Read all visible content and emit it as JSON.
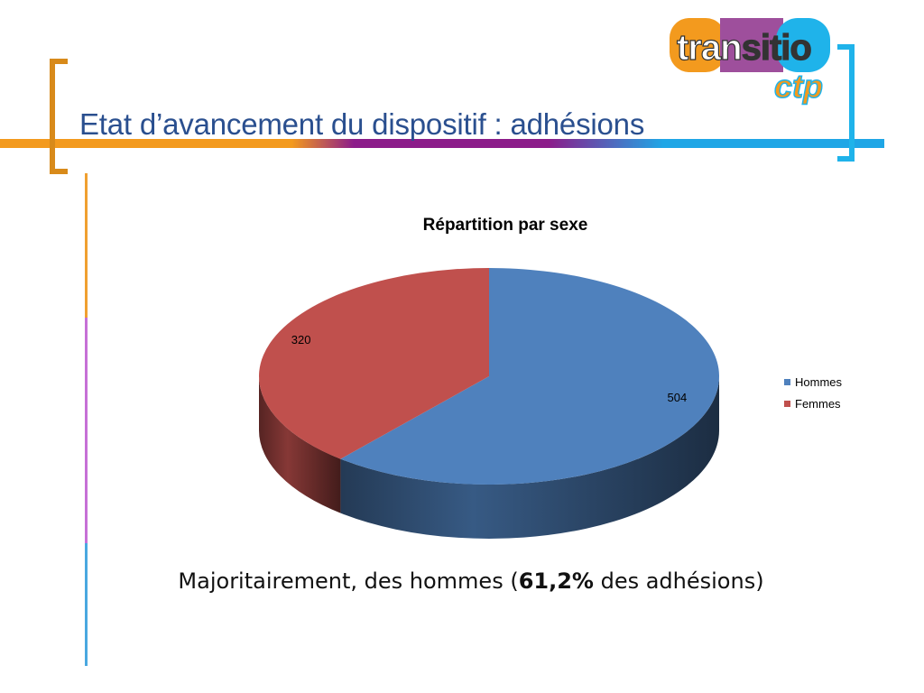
{
  "slide": {
    "title": "Etat d’avancement du dispositif : adhésions",
    "logo": {
      "line1_a": "tran",
      "line1_b": "sitio",
      "line2": "ctp"
    },
    "summary": {
      "before": "Majoritairement, des hommes (",
      "highlight": "61,2%",
      "after": " des adhésions)"
    }
  },
  "chart_data": {
    "type": "pie",
    "title": "Répartition par sexe",
    "categories": [
      "Hommes",
      "Femmes"
    ],
    "values": [
      504,
      320
    ],
    "colors": [
      "#4f81bd",
      "#c0504d"
    ],
    "legend_position": "right"
  }
}
